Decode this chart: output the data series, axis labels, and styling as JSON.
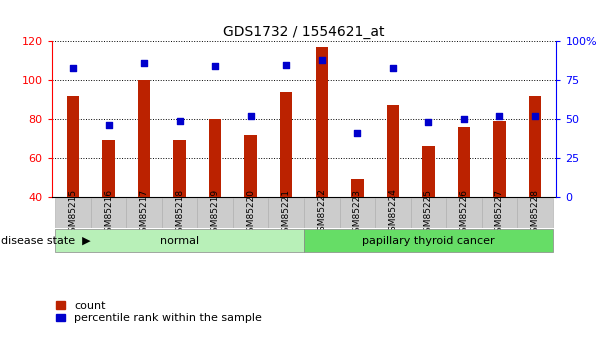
{
  "title": "GDS1732 / 1554621_at",
  "samples": [
    "GSM85215",
    "GSM85216",
    "GSM85217",
    "GSM85218",
    "GSM85219",
    "GSM85220",
    "GSM85221",
    "GSM85222",
    "GSM85223",
    "GSM85224",
    "GSM85225",
    "GSM85226",
    "GSM85227",
    "GSM85228"
  ],
  "count_values": [
    92,
    69,
    100,
    69,
    80,
    72,
    94,
    117,
    49,
    87,
    66,
    76,
    79,
    92
  ],
  "percentile_values": [
    83,
    46,
    86,
    49,
    84,
    52,
    85,
    88,
    41,
    83,
    48,
    50,
    52,
    52
  ],
  "bar_color": "#bb2200",
  "dot_color": "#0000cc",
  "ylim_left": [
    40,
    120
  ],
  "ylim_right": [
    0,
    100
  ],
  "yticks_left": [
    40,
    60,
    80,
    100,
    120
  ],
  "yticks_right": [
    0,
    25,
    50,
    75,
    100
  ],
  "ytick_labels_right": [
    "0",
    "25",
    "50",
    "75",
    "100%"
  ],
  "groups": [
    {
      "label": "normal",
      "indices": [
        0,
        1,
        2,
        3,
        4,
        5,
        6
      ],
      "color": "#b8f0b8"
    },
    {
      "label": "papillary thyroid cancer",
      "indices": [
        7,
        8,
        9,
        10,
        11,
        12,
        13
      ],
      "color": "#66dd66"
    }
  ],
  "disease_state_label": "disease state",
  "legend_count_label": "count",
  "legend_percentile_label": "percentile rank within the sample",
  "grid_color": "#888888",
  "xtick_bg_color": "#cccccc",
  "background_color": "#ffffff",
  "bar_width": 0.35
}
